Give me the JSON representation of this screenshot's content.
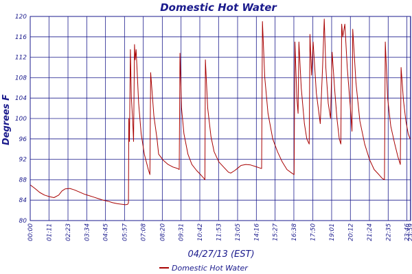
{
  "chart_data": {
    "type": "line",
    "title": "Domestic Hot Water",
    "xlabel": "04/27/13 (EST)",
    "ylabel": "Degrees F",
    "ylim": [
      80,
      120
    ],
    "xlim_hours": [
      0,
      24
    ],
    "grid": true,
    "legend_position": "bottom-left",
    "colors": {
      "series": "#a80000",
      "grid": "#1a1a8c",
      "text": "#1a1a8c"
    },
    "y_ticks": [
      80,
      84,
      88,
      92,
      96,
      100,
      104,
      108,
      112,
      116,
      120
    ],
    "x_ticks": [
      {
        "label": "00:00",
        "hour": 0
      },
      {
        "label": "01:11",
        "hour": 1.1833
      },
      {
        "label": "02:23",
        "hour": 2.3833
      },
      {
        "label": "03:34",
        "hour": 3.5667
      },
      {
        "label": "04:45",
        "hour": 4.75
      },
      {
        "label": "05:57",
        "hour": 5.95
      },
      {
        "label": "07:08",
        "hour": 7.1333
      },
      {
        "label": "08:20",
        "hour": 8.3333
      },
      {
        "label": "09:31",
        "hour": 9.5167
      },
      {
        "label": "10:42",
        "hour": 10.7
      },
      {
        "label": "11:53",
        "hour": 11.8833
      },
      {
        "label": "13:05",
        "hour": 13.0833
      },
      {
        "label": "14:16",
        "hour": 14.2667
      },
      {
        "label": "15:27",
        "hour": 15.45
      },
      {
        "label": "16:38",
        "hour": 16.6333
      },
      {
        "label": "17:50",
        "hour": 17.8333
      },
      {
        "label": "19:01",
        "hour": 19.0167
      },
      {
        "label": "20:12",
        "hour": 20.2
      },
      {
        "label": "21:24",
        "hour": 21.4
      },
      {
        "label": "22:35",
        "hour": 22.5833
      },
      {
        "label": "23:46",
        "hour": 23.7667
      },
      {
        "label": "23:59",
        "hour": 23.9833
      }
    ],
    "series": [
      {
        "name": "Domestic Hot Water",
        "points": [
          [
            0.0,
            87.0
          ],
          [
            0.3,
            86.3
          ],
          [
            0.6,
            85.5
          ],
          [
            0.9,
            85.0
          ],
          [
            1.2,
            84.7
          ],
          [
            1.5,
            84.5
          ],
          [
            1.8,
            85.0
          ],
          [
            2.0,
            85.8
          ],
          [
            2.2,
            86.2
          ],
          [
            2.5,
            86.3
          ],
          [
            2.8,
            86.0
          ],
          [
            3.1,
            85.6
          ],
          [
            3.4,
            85.2
          ],
          [
            3.7,
            84.9
          ],
          [
            4.0,
            84.6
          ],
          [
            4.3,
            84.3
          ],
          [
            4.6,
            84.0
          ],
          [
            4.9,
            83.8
          ],
          [
            5.2,
            83.5
          ],
          [
            5.5,
            83.3
          ],
          [
            5.8,
            83.2
          ],
          [
            6.0,
            83.1
          ],
          [
            6.15,
            83.2
          ],
          [
            6.2,
            83.5
          ],
          [
            6.22,
            100.0
          ],
          [
            6.26,
            95.5
          ],
          [
            6.32,
            113.5
          ],
          [
            6.38,
            104.0
          ],
          [
            6.46,
            100.0
          ],
          [
            6.52,
            95.5
          ],
          [
            6.58,
            114.5
          ],
          [
            6.62,
            111.5
          ],
          [
            6.68,
            113.5
          ],
          [
            6.76,
            108.5
          ],
          [
            6.84,
            103.0
          ],
          [
            7.0,
            97.0
          ],
          [
            7.2,
            93.0
          ],
          [
            7.45,
            90.0
          ],
          [
            7.55,
            89.0
          ],
          [
            7.6,
            109.0
          ],
          [
            7.8,
            100.5
          ],
          [
            8.0,
            96.0
          ],
          [
            8.1,
            93.0
          ],
          [
            8.4,
            91.8
          ],
          [
            8.7,
            91.0
          ],
          [
            9.0,
            90.5
          ],
          [
            9.3,
            90.2
          ],
          [
            9.4,
            90.0
          ],
          [
            9.45,
            112.8
          ],
          [
            9.55,
            102.0
          ],
          [
            9.7,
            97.0
          ],
          [
            9.95,
            93.0
          ],
          [
            10.2,
            91.0
          ],
          [
            10.5,
            89.8
          ],
          [
            10.75,
            89.0
          ],
          [
            10.95,
            88.3
          ],
          [
            11.02,
            88.0
          ],
          [
            11.05,
            111.5
          ],
          [
            11.2,
            102.0
          ],
          [
            11.4,
            96.5
          ],
          [
            11.6,
            93.5
          ],
          [
            11.9,
            91.5
          ],
          [
            12.2,
            90.5
          ],
          [
            12.5,
            89.5
          ],
          [
            12.65,
            89.3
          ],
          [
            12.9,
            89.8
          ],
          [
            13.1,
            90.3
          ],
          [
            13.3,
            90.8
          ],
          [
            13.6,
            91.0
          ],
          [
            13.9,
            90.9
          ],
          [
            14.2,
            90.6
          ],
          [
            14.5,
            90.3
          ],
          [
            14.6,
            90.2
          ],
          [
            14.65,
            119.0
          ],
          [
            14.8,
            108.0
          ],
          [
            15.0,
            101.0
          ],
          [
            15.3,
            96.0
          ],
          [
            15.6,
            93.5
          ],
          [
            15.9,
            91.5
          ],
          [
            16.2,
            90.0
          ],
          [
            16.5,
            89.3
          ],
          [
            16.65,
            89.0
          ],
          [
            16.7,
            115.0
          ],
          [
            16.82,
            104.0
          ],
          [
            16.9,
            101.0
          ],
          [
            16.95,
            115.0
          ],
          [
            17.1,
            106.0
          ],
          [
            17.3,
            99.0
          ],
          [
            17.45,
            96.0
          ],
          [
            17.6,
            95.0
          ],
          [
            17.65,
            116.5
          ],
          [
            17.75,
            108.5
          ],
          [
            17.85,
            115.0
          ],
          [
            18.05,
            105.0
          ],
          [
            18.3,
            99.0
          ],
          [
            18.45,
            110.5
          ],
          [
            18.55,
            119.5
          ],
          [
            18.65,
            110.0
          ],
          [
            18.8,
            103.0
          ],
          [
            18.95,
            100.0
          ],
          [
            19.05,
            113.0
          ],
          [
            19.2,
            106.0
          ],
          [
            19.35,
            100.0
          ],
          [
            19.5,
            96.0
          ],
          [
            19.6,
            95.0
          ],
          [
            19.65,
            118.5
          ],
          [
            19.72,
            116.0
          ],
          [
            19.85,
            118.5
          ],
          [
            20.0,
            110.0
          ],
          [
            20.2,
            102.0
          ],
          [
            20.3,
            97.5
          ],
          [
            20.35,
            117.5
          ],
          [
            20.55,
            107.0
          ],
          [
            20.8,
            99.5
          ],
          [
            21.1,
            95.0
          ],
          [
            21.4,
            92.0
          ],
          [
            21.7,
            90.0
          ],
          [
            22.0,
            89.0
          ],
          [
            22.2,
            88.3
          ],
          [
            22.35,
            88.0
          ],
          [
            22.4,
            115.0
          ],
          [
            22.55,
            104.0
          ],
          [
            22.75,
            98.5
          ],
          [
            23.0,
            95.0
          ],
          [
            23.2,
            92.5
          ],
          [
            23.35,
            91.0
          ],
          [
            23.4,
            110.0
          ],
          [
            23.55,
            103.5
          ],
          [
            23.7,
            99.5
          ],
          [
            23.85,
            97.0
          ],
          [
            23.97,
            96.0
          ]
        ]
      }
    ]
  }
}
